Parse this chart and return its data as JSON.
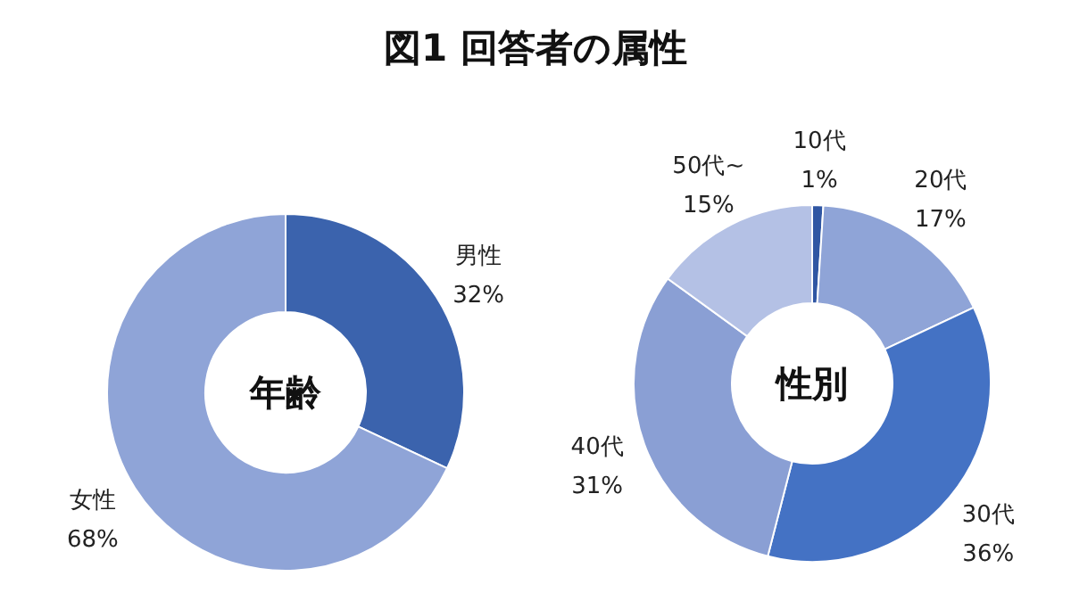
{
  "chart_data": [
    {
      "type": "donut",
      "title": "図1 回答者の属性",
      "annotations": [
        "年齢"
      ],
      "categories": [
        "男性",
        "女性"
      ],
      "values": [
        32,
        68
      ],
      "value_labels": [
        "32%",
        "68%"
      ],
      "colors": [
        "#3b63ad",
        "#8fa4d7"
      ]
    },
    {
      "type": "donut",
      "annotations": [
        "性別"
      ],
      "categories": [
        "10代",
        "20代",
        "30代",
        "40代",
        "50代~"
      ],
      "values": [
        1,
        17,
        36,
        31,
        15
      ],
      "value_labels": [
        "1%",
        "17%",
        "36%",
        "31%",
        "15%"
      ],
      "colors": [
        "#2f56a3",
        "#8fa4d7",
        "#4472c4",
        "#8a9fd4",
        "#b4c1e5"
      ]
    }
  ]
}
